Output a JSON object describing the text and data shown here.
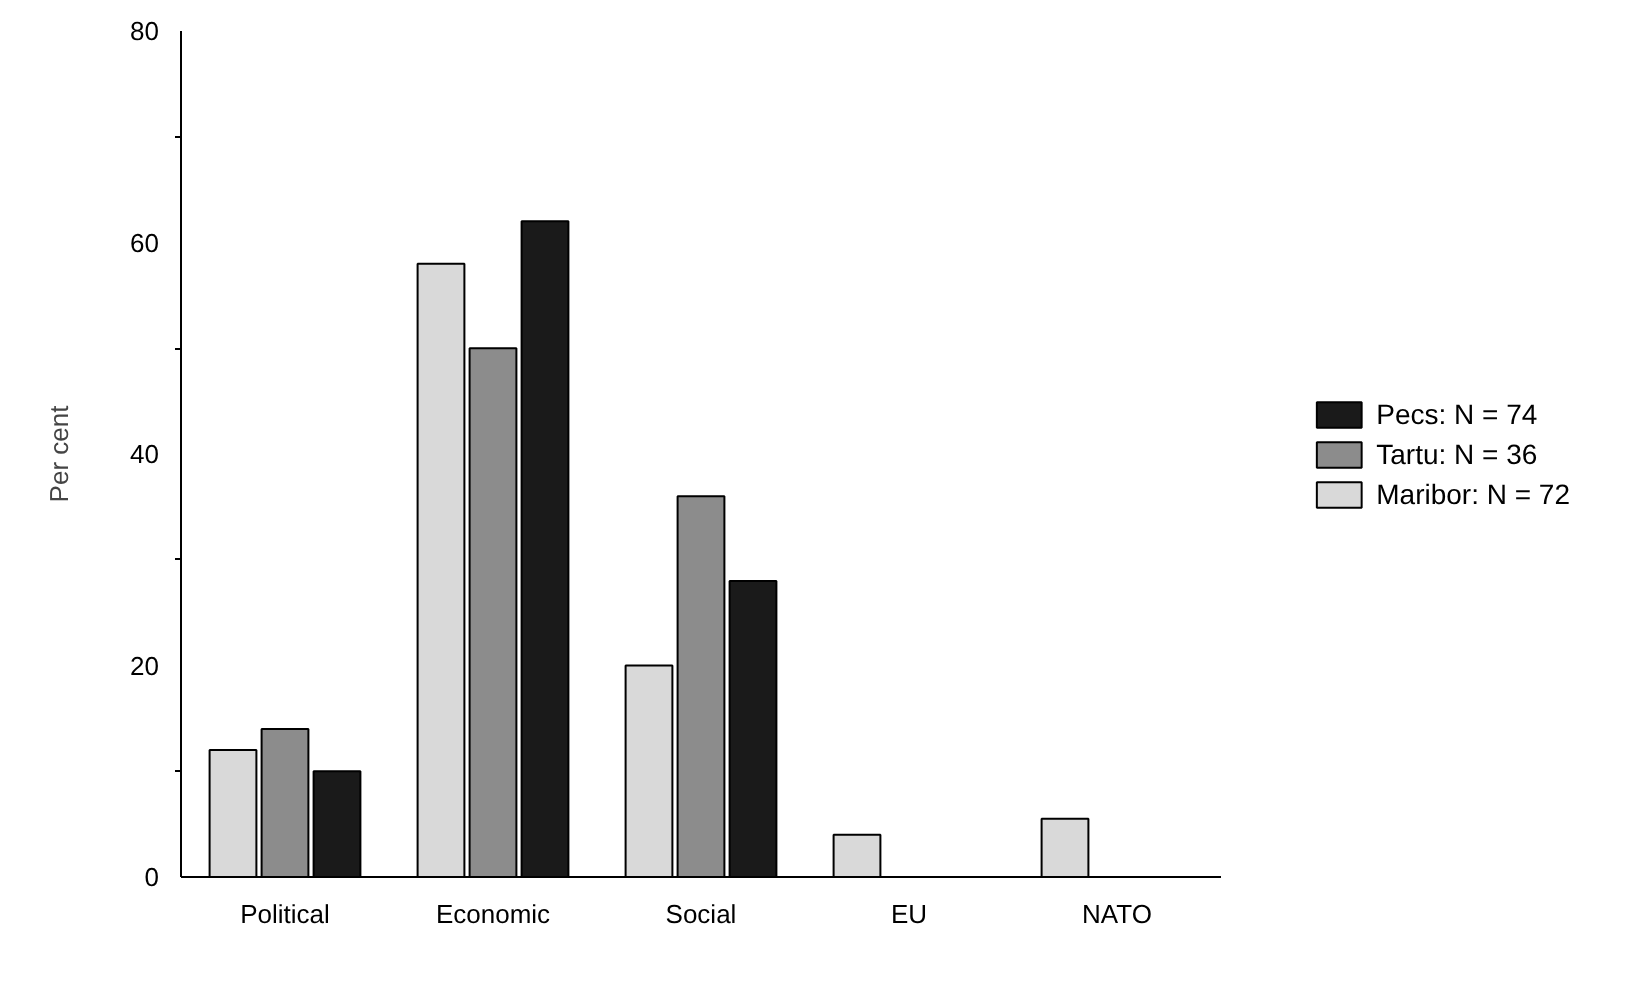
{
  "chart_data": {
    "type": "bar",
    "ylabel": "Per cent",
    "categories": [
      "Political",
      "Economic",
      "Social",
      "EU",
      "NATO"
    ],
    "series": [
      {
        "name": "Maribor: N = 72",
        "color": "#d9d9d9",
        "values": [
          12,
          58,
          20,
          4,
          5.5
        ]
      },
      {
        "name": "Tartu: N = 36",
        "color": "#8c8c8c",
        "values": [
          14,
          50,
          36,
          null,
          null
        ]
      },
      {
        "name": "Pecs: N = 74",
        "color": "#1a1a1a",
        "values": [
          10,
          62,
          28,
          null,
          null
        ]
      }
    ],
    "ylim": [
      0,
      80
    ],
    "yticks": [
      0,
      {
        "value": 10,
        "label": null
      },
      20,
      {
        "value": 30,
        "label": null
      },
      40,
      {
        "value": 50,
        "label": null
      },
      60,
      {
        "value": 70,
        "label": null
      },
      80
    ],
    "grid": false,
    "legend": "right"
  }
}
